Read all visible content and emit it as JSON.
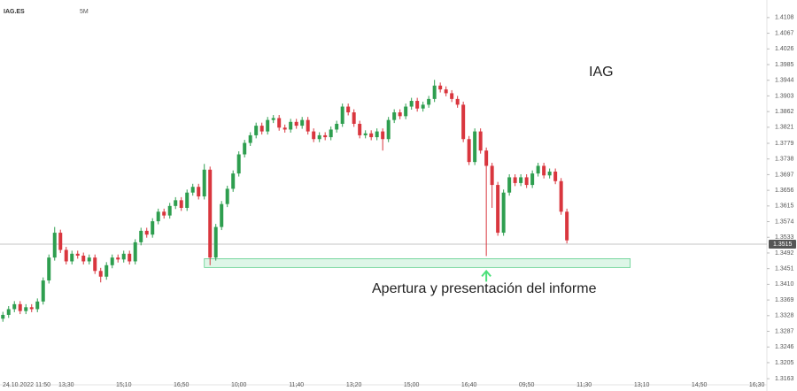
{
  "toolbar": {
    "symbol": "IAG.ES",
    "interval": "5M"
  },
  "chart_data": {
    "type": "candlestick",
    "title": "IAG",
    "up_color": "#2e9e4f",
    "down_color": "#d9363e",
    "xlim": [
      -0.5,
      132.6
    ],
    "ylim": [
      1.3147,
      1.4154
    ],
    "xticks": [
      {
        "value": 1,
        "label": "24.10.2022 11:50"
      },
      {
        "value": 11,
        "label": "13:30"
      },
      {
        "value": 21,
        "label": "15:10"
      },
      {
        "value": 31,
        "label": "16:50"
      },
      {
        "value": 41,
        "label": "10:00"
      },
      {
        "value": 51,
        "label": "11:40"
      },
      {
        "value": 61,
        "label": "13:20"
      },
      {
        "value": 71,
        "label": "15:00"
      },
      {
        "value": 81,
        "label": "16:40"
      },
      {
        "value": 91,
        "label": "09:50"
      },
      {
        "value": 101,
        "label": "11:30"
      },
      {
        "value": 111,
        "label": "13:10"
      },
      {
        "value": 121,
        "label": "14:50"
      },
      {
        "value": 131,
        "label": "16:30"
      }
    ],
    "yticks": [
      1.4108,
      1.4067,
      1.4026,
      1.3985,
      1.3944,
      1.3903,
      1.3862,
      1.3821,
      1.3779,
      1.3738,
      1.3697,
      1.3656,
      1.3615,
      1.3574,
      1.3533,
      1.3492,
      1.3451,
      {
        "value": 1.341,
        "label": "1.3410"
      },
      1.3369,
      1.3328,
      1.3287,
      1.3246,
      1.3205,
      1.3163
    ],
    "last_price": 1.3515,
    "highlight_zone": {
      "low": 1.3454,
      "high": 1.3477,
      "from": 35,
      "to": 109
    },
    "annotation": {
      "text": "Apertura y presentación del informe",
      "x": 84
    },
    "ohlc": [
      [
        1.332,
        1.3338,
        1.3312,
        1.333
      ],
      [
        1.333,
        1.3353,
        1.3322,
        1.3345
      ],
      [
        1.3345,
        1.3366,
        1.3337,
        1.3358
      ],
      [
        1.3358,
        1.3366,
        1.3332,
        1.334
      ],
      [
        1.334,
        1.3358,
        1.3332,
        1.335
      ],
      [
        1.335,
        1.3358,
        1.3337,
        1.3345
      ],
      [
        1.3345,
        1.3373,
        1.3337,
        1.3365
      ],
      [
        1.3365,
        1.3428,
        1.3357,
        1.342
      ],
      [
        1.342,
        1.3488,
        1.3412,
        1.348
      ],
      [
        1.348,
        1.356,
        1.3472,
        1.3545
      ],
      [
        1.3545,
        1.3553,
        1.3492,
        1.35
      ],
      [
        1.35,
        1.3508,
        1.3462,
        1.347
      ],
      [
        1.347,
        1.3498,
        1.3462,
        1.349
      ],
      [
        1.349,
        1.3498,
        1.3477,
        1.3485
      ],
      [
        1.3485,
        1.3493,
        1.3462,
        1.347
      ],
      [
        1.347,
        1.3488,
        1.3462,
        1.348
      ],
      [
        1.348,
        1.3488,
        1.3437,
        1.3445
      ],
      [
        1.3445,
        1.3453,
        1.3415,
        1.343
      ],
      [
        1.343,
        1.3468,
        1.3422,
        1.346
      ],
      [
        1.346,
        1.3488,
        1.3452,
        1.348
      ],
      [
        1.348,
        1.3488,
        1.3467,
        1.3475
      ],
      [
        1.3475,
        1.3498,
        1.3467,
        1.349
      ],
      [
        1.349,
        1.3498,
        1.3462,
        1.347
      ],
      [
        1.347,
        1.3528,
        1.3462,
        1.352
      ],
      [
        1.352,
        1.3558,
        1.3512,
        1.355
      ],
      [
        1.355,
        1.3558,
        1.3532,
        1.354
      ],
      [
        1.354,
        1.3583,
        1.3532,
        1.3575
      ],
      [
        1.3575,
        1.3608,
        1.3567,
        1.36
      ],
      [
        1.36,
        1.3608,
        1.3582,
        1.359
      ],
      [
        1.359,
        1.3623,
        1.3582,
        1.3615
      ],
      [
        1.3615,
        1.3638,
        1.3607,
        1.363
      ],
      [
        1.363,
        1.3638,
        1.3602,
        1.361
      ],
      [
        1.361,
        1.3658,
        1.3602,
        1.365
      ],
      [
        1.365,
        1.3673,
        1.3642,
        1.3665
      ],
      [
        1.3665,
        1.3673,
        1.3632,
        1.364
      ],
      [
        1.364,
        1.3725,
        1.3632,
        1.371
      ],
      [
        1.371,
        1.3718,
        1.346,
        1.348
      ],
      [
        1.348,
        1.3568,
        1.3472,
        1.356
      ],
      [
        1.356,
        1.3628,
        1.3552,
        1.362
      ],
      [
        1.362,
        1.3668,
        1.3612,
        1.366
      ],
      [
        1.366,
        1.3708,
        1.3652,
        1.37
      ],
      [
        1.37,
        1.3758,
        1.3692,
        1.375
      ],
      [
        1.375,
        1.3788,
        1.3742,
        1.378
      ],
      [
        1.378,
        1.3808,
        1.3772,
        1.38
      ],
      [
        1.38,
        1.3833,
        1.3792,
        1.3825
      ],
      [
        1.3825,
        1.3833,
        1.3802,
        1.381
      ],
      [
        1.381,
        1.3848,
        1.3802,
        1.384
      ],
      [
        1.384,
        1.3853,
        1.3832,
        1.3845
      ],
      [
        1.3845,
        1.3853,
        1.3812,
        1.382
      ],
      [
        1.382,
        1.3828,
        1.3807,
        1.3815
      ],
      [
        1.3815,
        1.3843,
        1.3807,
        1.3835
      ],
      [
        1.3835,
        1.3843,
        1.3817,
        1.3825
      ],
      [
        1.3825,
        1.3848,
        1.3817,
        1.384
      ],
      [
        1.384,
        1.3848,
        1.3802,
        1.381
      ],
      [
        1.381,
        1.3818,
        1.3782,
        1.379
      ],
      [
        1.379,
        1.3808,
        1.3782,
        1.38
      ],
      [
        1.38,
        1.3808,
        1.3787,
        1.3795
      ],
      [
        1.3795,
        1.3823,
        1.3787,
        1.3815
      ],
      [
        1.3815,
        1.3838,
        1.3807,
        1.383
      ],
      [
        1.383,
        1.3883,
        1.3822,
        1.3875
      ],
      [
        1.3875,
        1.3883,
        1.3852,
        1.386
      ],
      [
        1.386,
        1.3868,
        1.3822,
        1.383
      ],
      [
        1.383,
        1.3838,
        1.3792,
        1.38
      ],
      [
        1.38,
        1.3813,
        1.3792,
        1.3805
      ],
      [
        1.3805,
        1.3813,
        1.3787,
        1.3795
      ],
      [
        1.3795,
        1.3818,
        1.3787,
        1.381
      ],
      [
        1.381,
        1.3818,
        1.376,
        1.379
      ],
      [
        1.379,
        1.3848,
        1.3782,
        1.384
      ],
      [
        1.384,
        1.3868,
        1.3832,
        1.386
      ],
      [
        1.386,
        1.3868,
        1.3842,
        1.385
      ],
      [
        1.385,
        1.3883,
        1.3842,
        1.3875
      ],
      [
        1.3875,
        1.3898,
        1.3867,
        1.389
      ],
      [
        1.389,
        1.3898,
        1.3862,
        1.387
      ],
      [
        1.387,
        1.3888,
        1.3862,
        1.388
      ],
      [
        1.388,
        1.3903,
        1.3872,
        1.3895
      ],
      [
        1.3895,
        1.3945,
        1.3887,
        1.393
      ],
      [
        1.393,
        1.3938,
        1.3912,
        1.392
      ],
      [
        1.392,
        1.3928,
        1.3902,
        1.391
      ],
      [
        1.391,
        1.3918,
        1.3887,
        1.3895
      ],
      [
        1.3895,
        1.3903,
        1.3872,
        1.388
      ],
      [
        1.388,
        1.3888,
        1.3782,
        1.379
      ],
      [
        1.379,
        1.3798,
        1.3722,
        1.373
      ],
      [
        1.373,
        1.3818,
        1.3722,
        1.381
      ],
      [
        1.381,
        1.3818,
        1.3752,
        1.376
      ],
      [
        1.376,
        1.3768,
        1.3484,
        1.372
      ],
      [
        1.372,
        1.3728,
        1.361,
        1.367
      ],
      [
        1.367,
        1.3678,
        1.3537,
        1.3545
      ],
      [
        1.3545,
        1.3658,
        1.3537,
        1.365
      ],
      [
        1.365,
        1.3698,
        1.3642,
        1.369
      ],
      [
        1.369,
        1.3698,
        1.3667,
        1.3675
      ],
      [
        1.3675,
        1.3698,
        1.3667,
        1.369
      ],
      [
        1.369,
        1.3698,
        1.3662,
        1.367
      ],
      [
        1.367,
        1.3708,
        1.3662,
        1.37
      ],
      [
        1.37,
        1.3728,
        1.3692,
        1.372
      ],
      [
        1.372,
        1.3728,
        1.3687,
        1.3695
      ],
      [
        1.3695,
        1.3713,
        1.3687,
        1.3705
      ],
      [
        1.3705,
        1.3713,
        1.3672,
        1.368
      ],
      [
        1.368,
        1.3688,
        1.3592,
        1.36
      ],
      [
        1.36,
        1.3608,
        1.3517,
        1.3525
      ]
    ]
  }
}
